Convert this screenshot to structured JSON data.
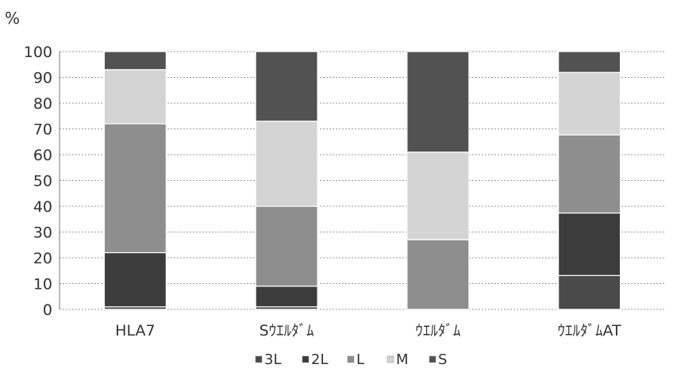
{
  "chart_data": {
    "type": "bar",
    "stacked": true,
    "percent_stacked": true,
    "ylabel": "%",
    "ylim": [
      0,
      100
    ],
    "yticks": [
      0,
      10,
      20,
      30,
      40,
      50,
      60,
      70,
      80,
      90,
      100
    ],
    "grid": true,
    "legend_position": "bottom",
    "categories": [
      "HLA7",
      "Sｳｴﾙﾀﾞﾑ",
      "ｳｴﾙﾀﾞﾑ",
      "ｳｴﾙﾀﾞﾑAT"
    ],
    "series": [
      {
        "name": "3L",
        "color": "#4a4a4a",
        "values": [
          1,
          1,
          0,
          13
        ]
      },
      {
        "name": "2L",
        "color": "#3c3c3c",
        "values": [
          21,
          8,
          0,
          24
        ]
      },
      {
        "name": "L",
        "color": "#8e8e8e",
        "values": [
          50,
          31,
          27,
          30
        ]
      },
      {
        "name": "M",
        "color": "#d4d4d4",
        "values": [
          21,
          33,
          34,
          24
        ]
      },
      {
        "name": "S",
        "color": "#525252",
        "values": [
          7,
          27,
          39,
          8
        ]
      }
    ]
  }
}
